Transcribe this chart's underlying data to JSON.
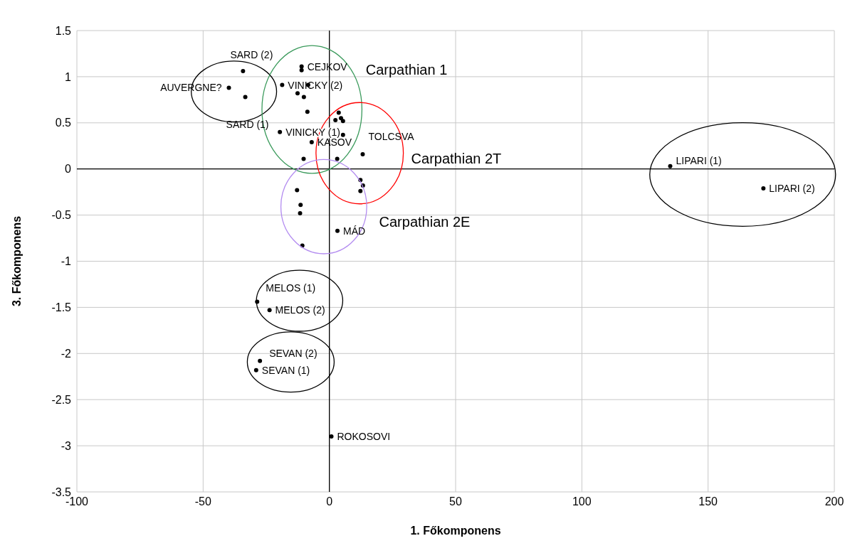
{
  "chart_data": {
    "type": "scatter",
    "xlabel": "1. Főkomponens",
    "ylabel": "3. Főkomponens",
    "xlim": [
      -100,
      200
    ],
    "xticks": [
      -100,
      -50,
      0,
      50,
      100,
      150,
      200
    ],
    "ylim": [
      -3.5,
      1.5
    ],
    "yticks": [
      -3.5,
      -3,
      -2.5,
      -2,
      -1.5,
      -1,
      -0.5,
      0,
      0.5,
      1,
      1.5
    ],
    "grid": true,
    "marker": "circle",
    "annotations": [
      {
        "text": "SARD (2)",
        "x": -34.2,
        "y": 1.06
      },
      {
        "text": "AUVERGNE?",
        "x": -39.8,
        "y": 0.88
      },
      {
        "text": "SARD (1)",
        "x": -33.3,
        "y": 0.78
      },
      {
        "text": "CEJKOV",
        "x": -11.0,
        "y": 1.11
      },
      {
        "text": "VINICKY (2)",
        "x": -18.7,
        "y": 0.91
      },
      {
        "text": "VINICKY (1)",
        "x": -19.6,
        "y": 0.4
      },
      {
        "text": "KASOV",
        "x": -7.0,
        "y": 0.29
      },
      {
        "text": "TOLCSVA",
        "x": 13.2,
        "y": 0.16
      },
      {
        "text": "MÁD",
        "x": 3.2,
        "y": -0.67
      },
      {
        "text": "MELOS (1)",
        "x": -28.6,
        "y": -1.44
      },
      {
        "text": "MELOS (2)",
        "x": -23.7,
        "y": -1.53
      },
      {
        "text": "SEVAN (2)",
        "x": -27.5,
        "y": -2.08
      },
      {
        "text": "SEVAN (1)",
        "x": -29.0,
        "y": -2.18
      },
      {
        "text": "ROKOSOVI",
        "x": 0.8,
        "y": -2.9
      },
      {
        "text": "LIPARI (1)",
        "x": 135.0,
        "y": 0.03
      },
      {
        "text": "LIPARI (2)",
        "x": 171.9,
        "y": -0.21
      },
      "Carpathian 1",
      "Carpathian 2T",
      "Carpathian 2E"
    ],
    "series": [
      {
        "color": "#000000",
        "x": [
          -34.2,
          -39.8,
          -33.3,
          -11.0,
          -11.0,
          -18.7,
          -8.4,
          -12.6,
          -10.1,
          -8.7,
          3.7,
          2.4,
          4.6,
          5.4,
          5.4,
          -19.6,
          -7.0,
          13.2,
          -10.2,
          3.1,
          12.3,
          13.3,
          12.3,
          -12.8,
          -11.4,
          -11.6,
          3.2,
          -10.7,
          -28.6,
          -23.7,
          -27.5,
          -29.0,
          0.8,
          135.0,
          171.9
        ],
        "values": [
          1.06,
          0.88,
          0.78,
          1.11,
          1.07,
          0.91,
          0.91,
          0.82,
          0.78,
          0.62,
          0.61,
          0.53,
          0.55,
          0.52,
          0.37,
          0.4,
          0.29,
          0.16,
          0.11,
          0.11,
          -0.12,
          -0.18,
          -0.24,
          -0.23,
          -0.39,
          -0.48,
          -0.67,
          -0.83,
          -1.44,
          -1.53,
          -2.08,
          -2.18,
          -2.9,
          0.03,
          -0.21
        ]
      }
    ]
  }
}
